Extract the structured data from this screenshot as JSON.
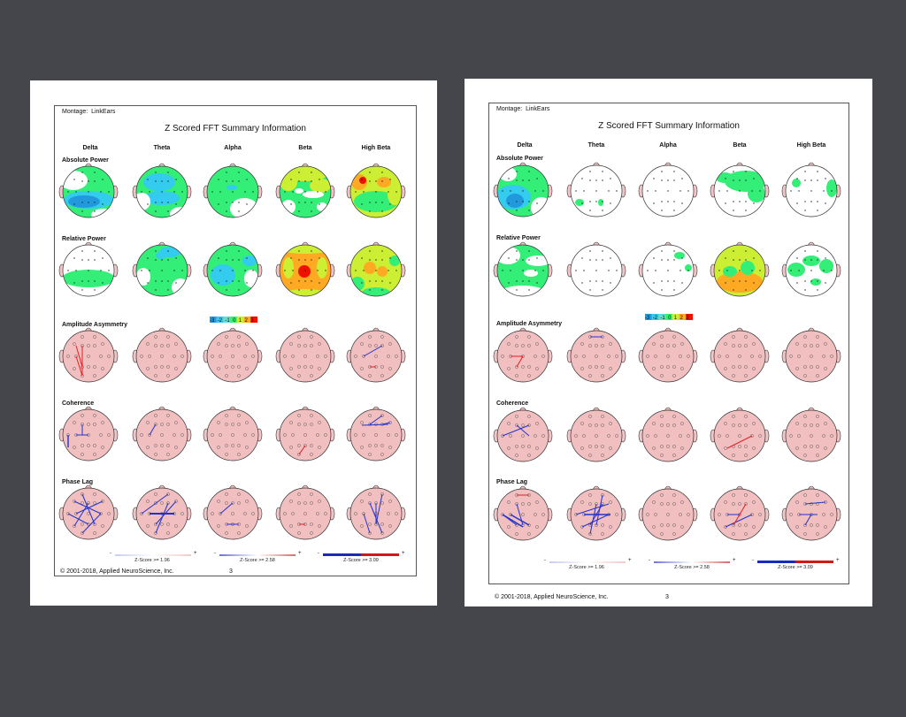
{
  "reports": [
    {
      "id": "left",
      "montage_label": "Montage:",
      "montage_value": "LinkEars",
      "title": "Z Scored FFT Summary Information",
      "bands": [
        "Delta",
        "Theta",
        "Alpha",
        "Beta",
        "High Beta"
      ],
      "row_labels": [
        "Absolute Power",
        "Relative Power",
        "Amplitude Asymmetry",
        "Coherence",
        "Phase Lag"
      ],
      "scale_ticks": [
        "-3",
        "-2",
        "-1",
        "0",
        "1",
        "2",
        "3"
      ],
      "z_legends": [
        "Z-Score >= 1.96",
        "Z-Score >= 2.58",
        "Z-Score >= 3.09"
      ],
      "minus": "-",
      "plus": "+",
      "copyright": "© 2001-2018, Applied NeuroScience, Inc.",
      "page_number": "3"
    },
    {
      "id": "right",
      "montage_label": "Montage:",
      "montage_value": "LinkEars",
      "title": "Z Scored FFT Summary Information",
      "bands": [
        "Delta",
        "Theta",
        "Alpha",
        "Beta",
        "High Beta"
      ],
      "row_labels": [
        "Absolute Power",
        "Relative Power",
        "Amplitude Asymmetry",
        "Coherence",
        "Phase Lag"
      ],
      "scale_ticks": [
        "-3",
        "-2",
        "-1",
        "0",
        "1",
        "2",
        "3"
      ],
      "z_legends": [
        "Z-Score >= 1.96",
        "Z-Score >= 2.58",
        "Z-Score >= 3.09"
      ],
      "minus": "-",
      "plus": "+",
      "copyright": "© 2001-2018, Applied NeuroScience, Inc.",
      "page_number": "3"
    }
  ],
  "colors": {
    "background": "#45464b",
    "paper": "#ffffff",
    "head_pink": "#f2bfc0",
    "z_zero_green": "#33ee77",
    "z_neg_cyan": "#33ccee",
    "z_neg_blue": "#2299dd",
    "z_pos_yellow": "#ccee33",
    "z_pos_orange": "#ffaa22",
    "z_pos_red": "#ee1100",
    "line_blue": "#2233cc",
    "line_red": "#dd2222"
  }
}
